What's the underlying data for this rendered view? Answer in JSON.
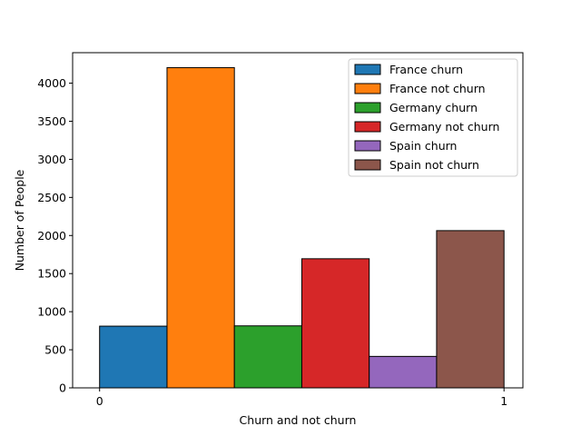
{
  "chart_data": {
    "type": "bar",
    "title": "",
    "xlabel": "Churn and not churn",
    "ylabel": "Number of People",
    "xlim": [
      -0.0667,
      1.0467
    ],
    "ylim": [
      0,
      4400
    ],
    "x_ticks": [
      {
        "value": 0,
        "label": "0"
      },
      {
        "value": 1,
        "label": "1"
      }
    ],
    "y_ticks": [
      {
        "value": 0,
        "label": "0"
      },
      {
        "value": 500,
        "label": "500"
      },
      {
        "value": 1000,
        "label": "1000"
      },
      {
        "value": 1500,
        "label": "1500"
      },
      {
        "value": 2000,
        "label": "2000"
      },
      {
        "value": 2500,
        "label": "2500"
      },
      {
        "value": 3000,
        "label": "3000"
      },
      {
        "value": 3500,
        "label": "3500"
      },
      {
        "value": 4000,
        "label": "4000"
      }
    ],
    "legend_position": "top-right",
    "grid": false,
    "series": [
      {
        "name": "France churn",
        "x_start": 0.0,
        "x_end": 0.1667,
        "value": 810,
        "color": "#1f77b4"
      },
      {
        "name": "France not churn",
        "x_start": 0.1667,
        "x_end": 0.3333,
        "value": 4204,
        "color": "#ff7f0e"
      },
      {
        "name": "Germany churn",
        "x_start": 0.3333,
        "x_end": 0.5,
        "value": 814,
        "color": "#2ca02c"
      },
      {
        "name": "Germany not churn",
        "x_start": 0.5,
        "x_end": 0.6667,
        "value": 1695,
        "color": "#d62728"
      },
      {
        "name": "Spain churn",
        "x_start": 0.6667,
        "x_end": 0.8333,
        "value": 413,
        "color": "#9467bd"
      },
      {
        "name": "Spain not churn",
        "x_start": 0.8333,
        "x_end": 1.0,
        "value": 2064,
        "color": "#8c564b"
      }
    ]
  }
}
